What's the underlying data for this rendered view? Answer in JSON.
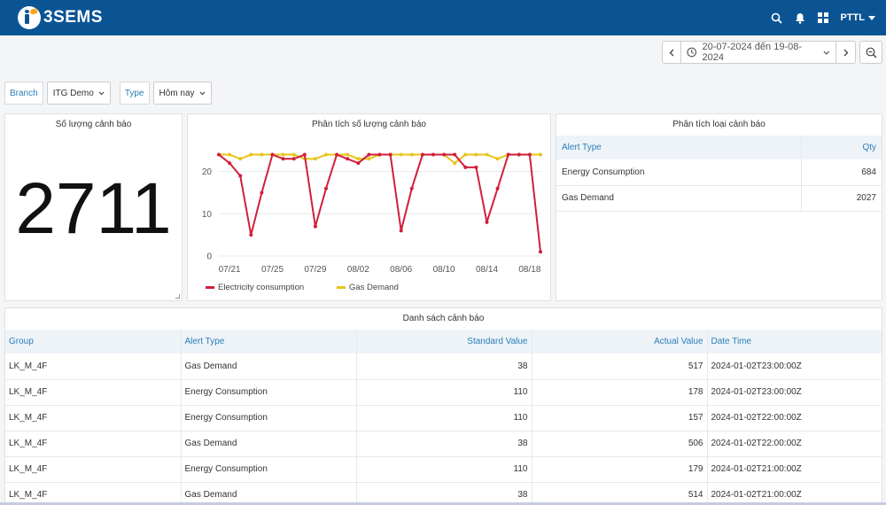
{
  "app": {
    "logo_text": "3SEMS",
    "user_name": "PTTL"
  },
  "date_range": {
    "text": "20-07-2024 đến 19-08-2024"
  },
  "filters": {
    "branch_label": "Branch",
    "branch_value": "ITG Demo",
    "type_label": "Type",
    "type_value": "Hôm nay"
  },
  "alert_count": {
    "title": "Số lượng cảnh báo",
    "value": "2711"
  },
  "chart_panel": {
    "title": "Phân tích số lượng cảnh báo"
  },
  "chart_data": {
    "type": "line",
    "title": "Phân tích số lượng cảnh báo",
    "x": [
      "07/20",
      "07/21",
      "07/22",
      "07/23",
      "07/24",
      "07/25",
      "07/26",
      "07/27",
      "07/28",
      "07/29",
      "07/30",
      "07/31",
      "08/01",
      "08/02",
      "08/03",
      "08/04",
      "08/05",
      "08/06",
      "08/07",
      "08/08",
      "08/09",
      "08/10",
      "08/11",
      "08/12",
      "08/13",
      "08/14",
      "08/15",
      "08/16",
      "08/17",
      "08/18",
      "08/19"
    ],
    "x_tick_labels": [
      "07/21",
      "07/25",
      "07/29",
      "08/02",
      "08/06",
      "08/10",
      "08/14",
      "08/18"
    ],
    "y_ticks": [
      "0",
      "10",
      "20"
    ],
    "ylim": [
      0,
      26
    ],
    "legend_position": "bottom",
    "grid": true,
    "series": [
      {
        "name": "Electricity consumption",
        "color": "#d11f3a",
        "values": [
          24,
          22,
          19,
          5,
          15,
          24,
          23,
          23,
          24,
          7,
          16,
          24,
          23,
          22,
          24,
          24,
          24,
          6,
          16,
          24,
          24,
          24,
          24,
          21,
          21,
          8,
          16,
          24,
          24,
          24,
          1
        ]
      },
      {
        "name": "Gas Demand",
        "color": "#e6c619",
        "values": [
          24,
          24,
          23,
          24,
          24,
          24,
          24,
          24,
          23,
          23,
          24,
          24,
          24,
          23,
          23,
          24,
          24,
          24,
          24,
          24,
          24,
          24,
          22,
          24,
          24,
          24,
          23,
          24,
          24,
          24,
          24
        ]
      }
    ]
  },
  "alert_types": {
    "title": "Phân tích loại cảnh báo",
    "col_type": "Alert Type",
    "col_qty": "Qty",
    "rows": [
      {
        "type": "Energy Consumption",
        "qty": "684"
      },
      {
        "type": "Gas Demand",
        "qty": "2027"
      }
    ]
  },
  "alert_list": {
    "title": "Danh sách cảnh báo",
    "columns": [
      "Group",
      "Alert Type",
      "Standard Value",
      "Actual Value",
      "Date Time"
    ],
    "rows": [
      {
        "group": "LK_M_4F",
        "type": "Gas Demand",
        "standard": "38",
        "actual": "517",
        "time": "2024-01-02T23:00:00Z"
      },
      {
        "group": "LK_M_4F",
        "type": "Energy Consumption",
        "standard": "110",
        "actual": "178",
        "time": "2024-01-02T23:00:00Z"
      },
      {
        "group": "LK_M_4F",
        "type": "Energy Consumption",
        "standard": "110",
        "actual": "157",
        "time": "2024-01-02T22:00:00Z"
      },
      {
        "group": "LK_M_4F",
        "type": "Gas Demand",
        "standard": "38",
        "actual": "506",
        "time": "2024-01-02T22:00:00Z"
      },
      {
        "group": "LK_M_4F",
        "type": "Energy Consumption",
        "standard": "110",
        "actual": "179",
        "time": "2024-01-02T21:00:00Z"
      },
      {
        "group": "LK_M_4F",
        "type": "Gas Demand",
        "standard": "38",
        "actual": "514",
        "time": "2024-01-02T21:00:00Z"
      }
    ]
  },
  "icons": {
    "search": "search-icon",
    "bell": "bell-icon",
    "apps": "grid-icon",
    "clock": "clock-icon",
    "zoom_out": "zoom-out-icon"
  }
}
